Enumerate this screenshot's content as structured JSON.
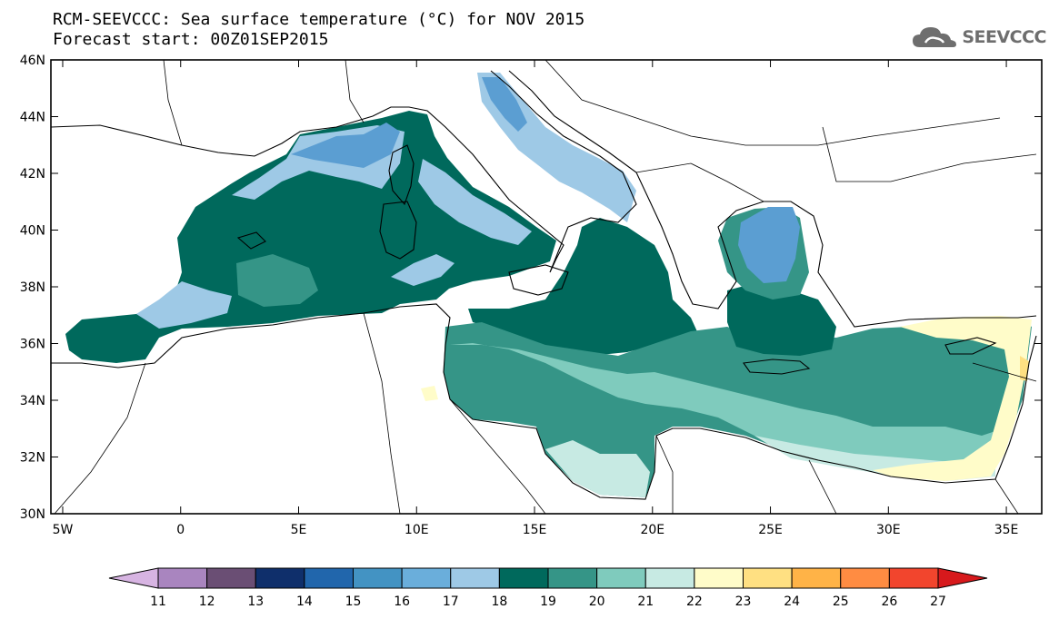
{
  "title_line1": "RCM-SEEVCCC: Sea surface temperature (°C) for NOV 2015",
  "title_line2": "Forecast start: 00Z01SEP2015",
  "logo": {
    "text": "SEEVCCC",
    "icon": "cloud-logo-icon",
    "color": "#6e6e6e"
  },
  "map": {
    "region": "Mediterranean Sea",
    "variable": "Sea surface temperature",
    "lon_range": [
      -5.5,
      36.5
    ],
    "lat_range": [
      30,
      46
    ],
    "x_ticks": [
      {
        "lon": -5,
        "label": "5W"
      },
      {
        "lon": 0,
        "label": "0"
      },
      {
        "lon": 5,
        "label": "5E"
      },
      {
        "lon": 10,
        "label": "10E"
      },
      {
        "lon": 15,
        "label": "15E"
      },
      {
        "lon": 20,
        "label": "20E"
      },
      {
        "lon": 25,
        "label": "25E"
      },
      {
        "lon": 30,
        "label": "30E"
      },
      {
        "lon": 35,
        "label": "35E"
      }
    ],
    "y_ticks": [
      {
        "lat": 30,
        "label": "30N"
      },
      {
        "lat": 32,
        "label": "32N"
      },
      {
        "lat": 34,
        "label": "34N"
      },
      {
        "lat": 36,
        "label": "36N"
      },
      {
        "lat": 38,
        "label": "38N"
      },
      {
        "lat": 40,
        "label": "40N"
      },
      {
        "lat": 42,
        "label": "42N"
      },
      {
        "lat": 44,
        "label": "44N"
      },
      {
        "lat": 46,
        "label": "46N"
      }
    ]
  },
  "colorbar": {
    "bounds": [
      "11",
      "12",
      "13",
      "14",
      "15",
      "16",
      "17",
      "18",
      "19",
      "20",
      "21",
      "22",
      "23",
      "24",
      "25",
      "26",
      "27"
    ],
    "colors": [
      "#d7b4e2",
      "#a985bf",
      "#6a4e74",
      "#0f2f6b",
      "#2166ac",
      "#4393c3",
      "#6aaedb",
      "#9ec9e6",
      "#00695c",
      "#359587",
      "#7fcbbd",
      "#c7eae3",
      "#fffcc9",
      "#ffe082",
      "#ffb347",
      "#ff8c42",
      "#f2452d",
      "#d7191c"
    ]
  },
  "sst_colors": {
    "c16": "#5b9ed2",
    "c17": "#9ec9e6",
    "c19": "#00695c",
    "c20": "#359587",
    "c21": "#7fcbbd",
    "c22": "#c7eae3",
    "c23": "#fffcc9",
    "c24": "#ffe082"
  }
}
